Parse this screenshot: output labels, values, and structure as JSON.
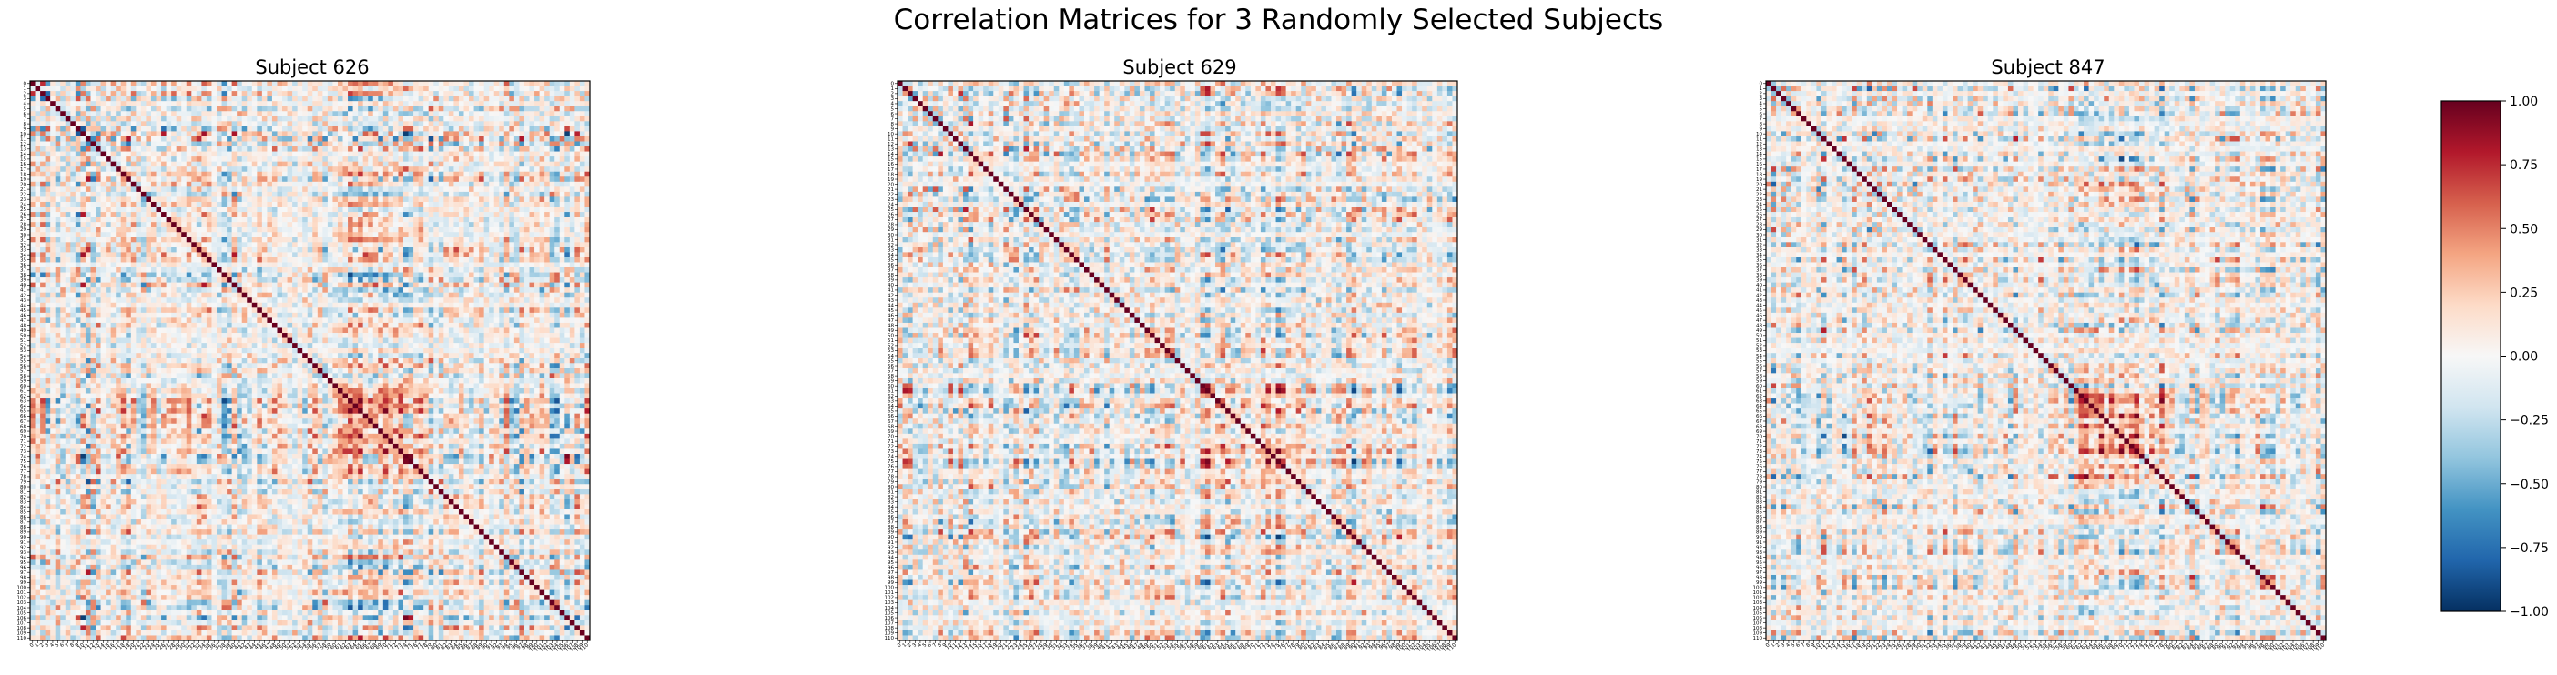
{
  "title": "Correlation Matrices for 3 Randomly Selected Subjects",
  "chart_data": [
    {
      "type": "heatmap",
      "title": "Subject 626",
      "matrix_size": 111,
      "x_ticks": "0..110",
      "y_ticks": "0..110",
      "value_range": [
        -1.0,
        1.0
      ],
      "diagonal_value": 1.0,
      "colormap": "RdBu_r",
      "seed": 626
    },
    {
      "type": "heatmap",
      "title": "Subject 629",
      "matrix_size": 111,
      "x_ticks": "0..110",
      "y_ticks": "0..110",
      "value_range": [
        -1.0,
        1.0
      ],
      "diagonal_value": 1.0,
      "colormap": "RdBu_r",
      "seed": 629
    },
    {
      "type": "heatmap",
      "title": "Subject 847",
      "matrix_size": 111,
      "x_ticks": "0..110",
      "y_ticks": "0..110",
      "value_range": [
        -1.0,
        1.0
      ],
      "diagonal_value": 1.0,
      "colormap": "RdBu_r",
      "seed": 847
    }
  ],
  "colorbar": {
    "ticks": [
      "1.00",
      "0.75",
      "0.50",
      "0.25",
      "0.00",
      "−0.25",
      "−0.50",
      "−0.75",
      "−1.00"
    ],
    "tick_values": [
      1.0,
      0.75,
      0.5,
      0.25,
      0.0,
      -0.25,
      -0.5,
      -0.75,
      -1.0
    ],
    "colors": [
      "#053061",
      "#2166ac",
      "#4393c3",
      "#92c5de",
      "#d1e5f0",
      "#f7f7f7",
      "#fddbc7",
      "#f4a582",
      "#d6604d",
      "#b2182b",
      "#67001f"
    ]
  }
}
